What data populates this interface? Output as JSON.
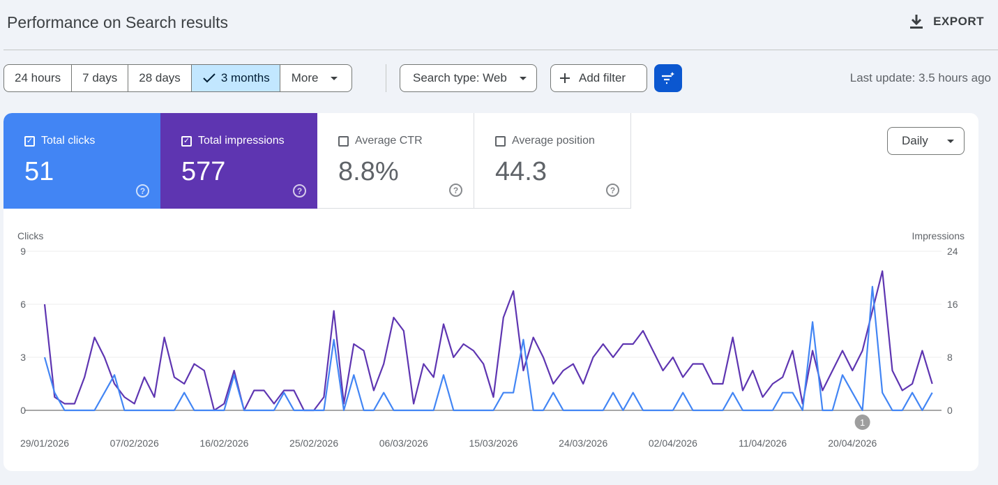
{
  "header": {
    "title": "Performance on Search results",
    "export_label": "EXPORT"
  },
  "date_ranges": [
    {
      "label": "24 hours",
      "selected": false
    },
    {
      "label": "7 days",
      "selected": false
    },
    {
      "label": "28 days",
      "selected": false
    },
    {
      "label": "3 months",
      "selected": true
    },
    {
      "label": "More",
      "selected": false
    }
  ],
  "filters": {
    "search_type": "Search type: Web",
    "add_filter": "Add filter"
  },
  "last_update": "Last update: 3.5 hours ago",
  "metrics": [
    {
      "label": "Total clicks",
      "value": "51",
      "checked": true
    },
    {
      "label": "Total impressions",
      "value": "577",
      "checked": true
    },
    {
      "label": "Average CTR",
      "value": "8.8%",
      "checked": false
    },
    {
      "label": "Average position",
      "value": "44.3",
      "checked": false
    }
  ],
  "granularity": "Daily",
  "colors": {
    "clicks": "#4285f4",
    "impressions": "#5e35b1",
    "accent": "#0b57d0"
  },
  "chart_data": {
    "type": "line",
    "start_date": "29/01/2026",
    "end_date": "28/04/2026",
    "x_tick_labels": [
      "29/01/2026",
      "07/02/2026",
      "16/02/2026",
      "25/02/2026",
      "06/03/2026",
      "15/03/2026",
      "24/03/2026",
      "02/04/2026",
      "11/04/2026",
      "20/04/2026"
    ],
    "y_left": {
      "label": "Clicks",
      "ticks": [
        0,
        3,
        6,
        9
      ],
      "range": [
        0,
        9
      ]
    },
    "y_right": {
      "label": "Impressions",
      "ticks": [
        0,
        8,
        16,
        24
      ],
      "range": [
        0,
        24
      ]
    },
    "grid": true,
    "annotation": {
      "label": "1",
      "date": "21/04/2026"
    },
    "series": [
      {
        "name": "Clicks",
        "axis": "left",
        "color": "#4285f4",
        "values": [
          3,
          1,
          0,
          0,
          0,
          0,
          1,
          2,
          0,
          0,
          0,
          0,
          0,
          0,
          1,
          0,
          0,
          0,
          0,
          2,
          0,
          0,
          0,
          0,
          1,
          0,
          0,
          0,
          0,
          4,
          0,
          2,
          0,
          0,
          1,
          0,
          0,
          0,
          0,
          0,
          2,
          0,
          0,
          0,
          0,
          0,
          1,
          1,
          4,
          0,
          0,
          1,
          0,
          0,
          0,
          0,
          0,
          1,
          0,
          1,
          0,
          0,
          0,
          0,
          1,
          0,
          0,
          0,
          0,
          1,
          0,
          0,
          0,
          0,
          1,
          1,
          0,
          5,
          0,
          0,
          2,
          1,
          0,
          7,
          1,
          0,
          0,
          1,
          0,
          1
        ]
      },
      {
        "name": "Impressions",
        "axis": "right",
        "color": "#5e35b1",
        "values": [
          16,
          2,
          1,
          1,
          5,
          11,
          8,
          4,
          2,
          1,
          5,
          2,
          11,
          5,
          4,
          7,
          6,
          0,
          1,
          6,
          0,
          3,
          3,
          1,
          3,
          3,
          0,
          0,
          2,
          15,
          1,
          10,
          9,
          3,
          7,
          14,
          12,
          1,
          7,
          5,
          13,
          8,
          10,
          9,
          7,
          2,
          14,
          18,
          6,
          11,
          8,
          4,
          6,
          7,
          4,
          8,
          10,
          8,
          10,
          10,
          12,
          9,
          6,
          8,
          5,
          7,
          7,
          4,
          4,
          11,
          3,
          6,
          2,
          4,
          5,
          9,
          1,
          9,
          3,
          6,
          9,
          6,
          9,
          15,
          21,
          6,
          3,
          4,
          9,
          4
        ]
      }
    ]
  }
}
